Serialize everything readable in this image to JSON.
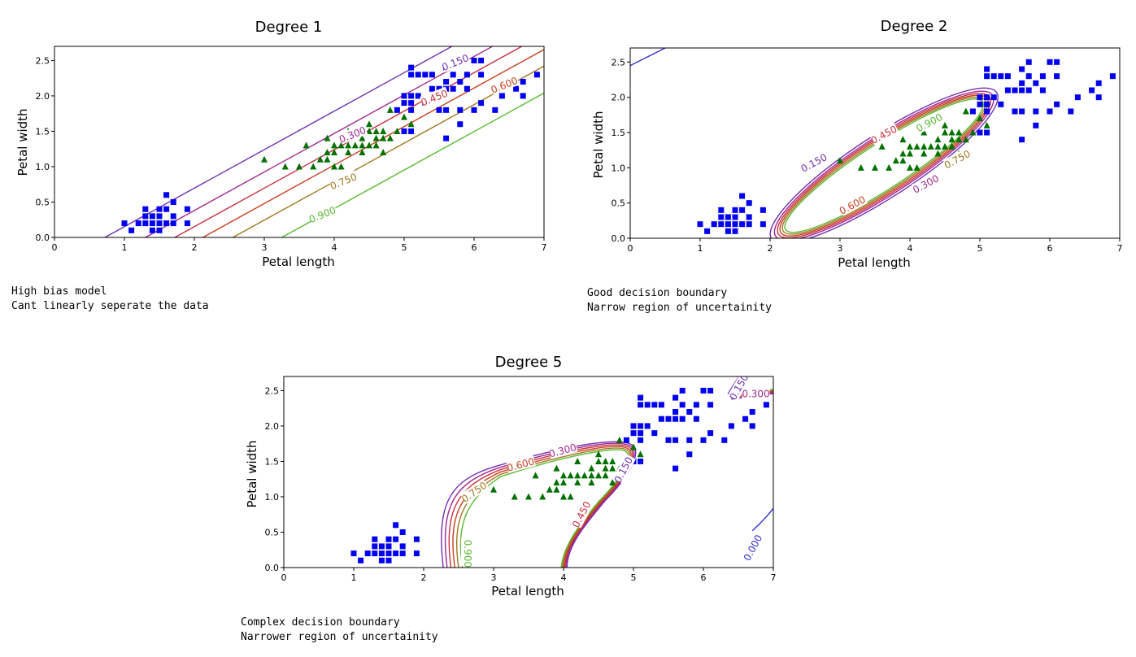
{
  "chart_data": [
    {
      "type": "scatter",
      "title": "Degree 1",
      "xlabel": "Petal length",
      "ylabel": "Petal width",
      "xlim": [
        0,
        7
      ],
      "ylim": [
        0,
        2.7
      ],
      "xticks": [
        "0",
        "1",
        "2",
        "3",
        "4",
        "5",
        "6",
        "7"
      ],
      "yticks": [
        "0.0",
        "0.5",
        "1.0",
        "1.5",
        "2.0",
        "2.5"
      ],
      "series": [
        {
          "marker": "square",
          "color": "#0000ee",
          "points": [
            [
              1.0,
              0.2
            ],
            [
              1.1,
              0.1
            ],
            [
              1.2,
              0.2
            ],
            [
              1.3,
              0.2
            ],
            [
              1.3,
              0.3
            ],
            [
              1.3,
              0.4
            ],
            [
              1.4,
              0.1
            ],
            [
              1.4,
              0.2
            ],
            [
              1.4,
              0.3
            ],
            [
              1.5,
              0.1
            ],
            [
              1.5,
              0.2
            ],
            [
              1.5,
              0.3
            ],
            [
              1.5,
              0.4
            ],
            [
              1.6,
              0.2
            ],
            [
              1.6,
              0.4
            ],
            [
              1.6,
              0.6
            ],
            [
              1.7,
              0.2
            ],
            [
              1.7,
              0.3
            ],
            [
              1.7,
              0.5
            ],
            [
              1.9,
              0.2
            ],
            [
              1.9,
              0.4
            ],
            [
              4.9,
              1.8
            ],
            [
              5.0,
              1.5
            ],
            [
              5.0,
              1.9
            ],
            [
              5.0,
              2.0
            ],
            [
              5.1,
              1.5
            ],
            [
              5.1,
              1.8
            ],
            [
              5.1,
              1.9
            ],
            [
              5.1,
              2.0
            ],
            [
              5.1,
              2.3
            ],
            [
              5.1,
              2.4
            ],
            [
              5.2,
              2.0
            ],
            [
              5.2,
              2.3
            ],
            [
              5.3,
              1.9
            ],
            [
              5.3,
              2.3
            ],
            [
              5.4,
              2.1
            ],
            [
              5.4,
              2.3
            ],
            [
              5.5,
              1.8
            ],
            [
              5.5,
              2.1
            ],
            [
              5.6,
              1.4
            ],
            [
              5.6,
              1.8
            ],
            [
              5.6,
              2.1
            ],
            [
              5.6,
              2.2
            ],
            [
              5.6,
              2.4
            ],
            [
              5.7,
              2.1
            ],
            [
              5.7,
              2.3
            ],
            [
              5.7,
              2.5
            ],
            [
              5.8,
              1.6
            ],
            [
              5.8,
              1.8
            ],
            [
              5.8,
              2.2
            ],
            [
              5.9,
              2.1
            ],
            [
              5.9,
              2.3
            ],
            [
              6.0,
              1.8
            ],
            [
              6.0,
              2.5
            ],
            [
              6.1,
              1.9
            ],
            [
              6.1,
              2.3
            ],
            [
              6.1,
              2.5
            ],
            [
              6.3,
              1.8
            ],
            [
              6.4,
              2.0
            ],
            [
              6.6,
              2.1
            ],
            [
              6.7,
              2.0
            ],
            [
              6.7,
              2.2
            ],
            [
              6.9,
              2.3
            ]
          ]
        },
        {
          "marker": "triangle",
          "color": "#007000",
          "points": [
            [
              3.0,
              1.1
            ],
            [
              3.3,
              1.0
            ],
            [
              3.5,
              1.0
            ],
            [
              3.6,
              1.3
            ],
            [
              3.7,
              1.0
            ],
            [
              3.8,
              1.1
            ],
            [
              3.9,
              1.1
            ],
            [
              3.9,
              1.2
            ],
            [
              3.9,
              1.4
            ],
            [
              4.0,
              1.0
            ],
            [
              4.0,
              1.2
            ],
            [
              4.0,
              1.3
            ],
            [
              4.1,
              1.0
            ],
            [
              4.1,
              1.3
            ],
            [
              4.2,
              1.2
            ],
            [
              4.2,
              1.3
            ],
            [
              4.2,
              1.5
            ],
            [
              4.3,
              1.3
            ],
            [
              4.4,
              1.2
            ],
            [
              4.4,
              1.3
            ],
            [
              4.4,
              1.4
            ],
            [
              4.5,
              1.3
            ],
            [
              4.5,
              1.5
            ],
            [
              4.5,
              1.6
            ],
            [
              4.6,
              1.3
            ],
            [
              4.6,
              1.4
            ],
            [
              4.6,
              1.5
            ],
            [
              4.7,
              1.2
            ],
            [
              4.7,
              1.4
            ],
            [
              4.7,
              1.5
            ],
            [
              4.8,
              1.4
            ],
            [
              4.8,
              1.8
            ],
            [
              4.9,
              1.5
            ],
            [
              5.0,
              1.7
            ],
            [
              5.1,
              1.6
            ]
          ]
        }
      ],
      "contours": [
        {
          "level": "0.150",
          "color": "#7030b0"
        },
        {
          "level": "0.300",
          "color": "#a02890"
        },
        {
          "level": "0.450",
          "color": "#c83040"
        },
        {
          "level": "0.600",
          "color": "#c84020"
        },
        {
          "level": "0.750",
          "color": "#a07820"
        },
        {
          "level": "0.900",
          "color": "#58b830"
        }
      ]
    },
    {
      "type": "scatter",
      "title": "Degree 2",
      "xlabel": "Petal length",
      "ylabel": "Petal width",
      "xlim": [
        0,
        7
      ],
      "ylim": [
        0,
        2.7
      ],
      "xticks": [
        "0",
        "1",
        "2",
        "3",
        "4",
        "5",
        "6",
        "7"
      ],
      "yticks": [
        "0.0",
        "0.5",
        "1.0",
        "1.5",
        "2.0",
        "2.5"
      ],
      "contours": [
        {
          "level": "0.150",
          "color": "#7030b0"
        },
        {
          "level": "0.300",
          "color": "#a02890"
        },
        {
          "level": "0.450",
          "color": "#c83040"
        },
        {
          "level": "0.600",
          "color": "#c84020"
        },
        {
          "level": "0.750",
          "color": "#a07820"
        },
        {
          "level": "0.900",
          "color": "#58b830"
        }
      ]
    },
    {
      "type": "scatter",
      "title": "Degree 5",
      "xlabel": "Petal length",
      "ylabel": "Petal width",
      "xlim": [
        0,
        7
      ],
      "ylim": [
        0,
        2.7
      ],
      "xticks": [
        "0",
        "1",
        "2",
        "3",
        "4",
        "5",
        "6",
        "7"
      ],
      "yticks": [
        "0.0",
        "0.5",
        "1.0",
        "1.5",
        "2.0",
        "2.5"
      ],
      "contours": [
        {
          "level": "0.000",
          "color": "#3030d0"
        },
        {
          "level": "0.150",
          "color": "#7030b0"
        },
        {
          "level": "0.300",
          "color": "#a02890"
        },
        {
          "level": "0.450",
          "color": "#c83040"
        },
        {
          "level": "0.600",
          "color": "#c84020"
        },
        {
          "level": "0.750",
          "color": "#a07820"
        },
        {
          "level": "0.900",
          "color": "#58b830"
        }
      ]
    }
  ],
  "notes": {
    "degree1": [
      "High bias model",
      "Cant linearly seperate the data"
    ],
    "degree2": [
      "Good decision boundary",
      "Narrow region of uncertainity"
    ],
    "degree5": [
      "Complex decision boundary",
      "Narrower region of uncertainity"
    ]
  }
}
